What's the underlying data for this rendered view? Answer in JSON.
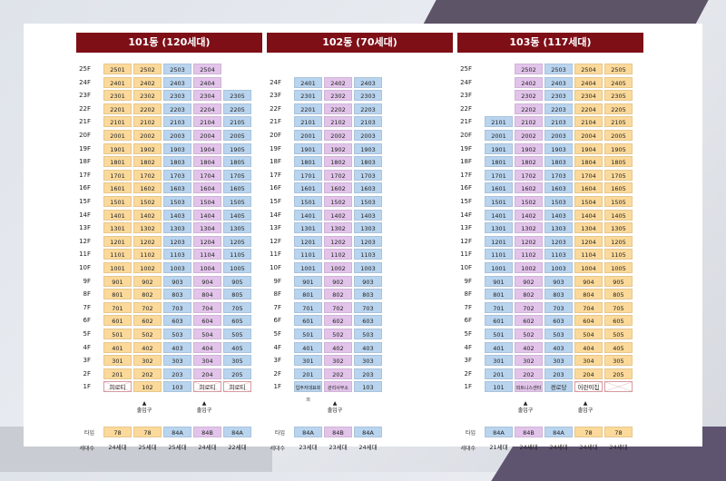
{
  "type_label": "타입",
  "count_label": "세대수",
  "entrance_label": "출입구",
  "buildings": [
    {
      "title": "101동 (120세대)",
      "cols": [
        {
          "floors": [
            25,
            24,
            23,
            22,
            21,
            20,
            19,
            18,
            17,
            16,
            15,
            14,
            13,
            12,
            11,
            10,
            9,
            8,
            7,
            6,
            5,
            4,
            3,
            2
          ],
          "color": "o",
          "f1": "피로티",
          "f1_type": "w",
          "type": "78",
          "count": "24세대",
          "unit": "01"
        },
        {
          "floors": [
            25,
            24,
            23,
            22,
            21,
            20,
            19,
            18,
            17,
            16,
            15,
            14,
            13,
            12,
            11,
            10,
            9,
            8,
            7,
            6,
            5,
            4,
            3,
            2
          ],
          "color": "o",
          "f1": "102",
          "f1_type": "o",
          "type": "78",
          "count": "25세대",
          "unit": "02"
        },
        {
          "floors": [
            25,
            24,
            23,
            22,
            21,
            20,
            19,
            18,
            17,
            16,
            15,
            14,
            13,
            12,
            11,
            10,
            9,
            8,
            7,
            6,
            5,
            4,
            3,
            2
          ],
          "color": "b",
          "f1": "103",
          "f1_type": "b",
          "type": "84A",
          "count": "25세대",
          "unit": "03"
        },
        {
          "floors": [
            25,
            24,
            23,
            22,
            21,
            20,
            19,
            18,
            17,
            16,
            15,
            14,
            13,
            12,
            11,
            10,
            9,
            8,
            7,
            6,
            5,
            4,
            3,
            2
          ],
          "color": "p",
          "f1": "피로티",
          "f1_type": "w",
          "type": "84B",
          "count": "24세대",
          "unit": "04"
        },
        {
          "floors": [
            23,
            22,
            21,
            20,
            19,
            18,
            17,
            16,
            15,
            14,
            13,
            12,
            11,
            10,
            9,
            8,
            7,
            6,
            5,
            4,
            3,
            2
          ],
          "color": "b",
          "f1": "피로티",
          "f1_type": "w",
          "type": "84A",
          "count": "22세대",
          "unit": "05"
        }
      ],
      "entrances": [
        1,
        3
      ],
      "floor_labels": [
        "25F",
        "24F",
        "23F",
        "22F",
        "21F",
        "20F",
        "19F",
        "18F",
        "17F",
        "16F",
        "15F",
        "14F",
        "13F",
        "12F",
        "11F",
        "10F",
        "9F",
        "8F",
        "7F",
        "6F",
        "5F",
        "4F",
        "3F",
        "2F",
        "1F"
      ]
    },
    {
      "title": "102동 (70세대)",
      "cols": [
        {
          "floors": [
            24,
            23,
            22,
            21,
            20,
            19,
            18,
            17,
            16,
            15,
            14,
            13,
            12,
            11,
            10,
            9,
            8,
            7,
            6,
            5,
            4,
            3,
            2
          ],
          "color": "b",
          "f1": "입주자대표회의",
          "f1_type": "b",
          "type": "84A",
          "count": "23세대",
          "unit": "01"
        },
        {
          "floors": [
            24,
            23,
            22,
            21,
            20,
            19,
            18,
            17,
            16,
            15,
            14,
            13,
            12,
            11,
            10,
            9,
            8,
            7,
            6,
            5,
            4,
            3,
            2
          ],
          "color": "p",
          "f1": "관리사무소",
          "f1_type": "p",
          "type": "84B",
          "count": "23세대",
          "unit": "02"
        },
        {
          "floors": [
            24,
            23,
            22,
            21,
            20,
            19,
            18,
            17,
            16,
            15,
            14,
            13,
            12,
            11,
            10,
            9,
            8,
            7,
            6,
            5,
            4,
            3,
            2
          ],
          "color": "b",
          "f1": "103",
          "f1_type": "b",
          "type": "84A",
          "count": "24세대",
          "unit": "03"
        }
      ],
      "entrances": [
        1
      ],
      "floor_labels": [
        "",
        "24F",
        "23F",
        "22F",
        "21F",
        "20F",
        "19F",
        "18F",
        "17F",
        "16F",
        "15F",
        "14F",
        "13F",
        "12F",
        "11F",
        "10F",
        "9F",
        "8F",
        "7F",
        "6F",
        "5F",
        "4F",
        "3F",
        "2F",
        "1F"
      ]
    },
    {
      "title": "103동 (117세대)",
      "cols": [
        {
          "floors": [
            21,
            20,
            19,
            18,
            17,
            16,
            15,
            14,
            13,
            12,
            11,
            10,
            9,
            8,
            7,
            6,
            5,
            4,
            3,
            2
          ],
          "color": "b",
          "f1": "101",
          "f1_type": "b",
          "type": "84A",
          "count": "21세대",
          "unit": "01"
        },
        {
          "floors": [
            25,
            24,
            23,
            22,
            21,
            20,
            19,
            18,
            17,
            16,
            15,
            14,
            13,
            12,
            11,
            10,
            9,
            8,
            7,
            6,
            5,
            4,
            3,
            2
          ],
          "color": "p",
          "f1": "피트니스센터",
          "f1_type": "p",
          "type": "84B",
          "count": "24세대",
          "unit": "02"
        },
        {
          "floors": [
            25,
            24,
            23,
            22,
            21,
            20,
            19,
            18,
            17,
            16,
            15,
            14,
            13,
            12,
            11,
            10,
            9,
            8,
            7,
            6,
            5,
            4,
            3,
            2
          ],
          "color": "b",
          "f1": "경로당",
          "f1_type": "b",
          "type": "84A",
          "count": "24세대",
          "unit": "03"
        },
        {
          "floors": [
            25,
            24,
            23,
            22,
            21,
            20,
            19,
            18,
            17,
            16,
            15,
            14,
            13,
            12,
            11,
            10,
            9,
            8,
            7,
            6,
            5,
            4,
            3,
            2
          ],
          "color": "o",
          "f1": "어린이집",
          "f1_type": "w",
          "type": "78",
          "count": "24세대",
          "unit": "04"
        },
        {
          "floors": [
            25,
            24,
            23,
            22,
            21,
            20,
            19,
            18,
            17,
            16,
            15,
            14,
            13,
            12,
            11,
            10,
            9,
            8,
            7,
            6,
            5,
            4,
            3,
            2
          ],
          "color": "o",
          "f1": "",
          "f1_type": "w",
          "type": "78",
          "count": "24세대",
          "unit": "05"
        }
      ],
      "entrances": [
        1,
        3
      ],
      "floor_labels": [
        "25F",
        "24F",
        "23F",
        "22F",
        "21F",
        "20F",
        "19F",
        "18F",
        "17F",
        "16F",
        "15F",
        "14F",
        "13F",
        "12F",
        "11F",
        "10F",
        "9F",
        "8F",
        "7F",
        "6F",
        "5F",
        "4F",
        "3F",
        "2F",
        "1F"
      ]
    }
  ]
}
